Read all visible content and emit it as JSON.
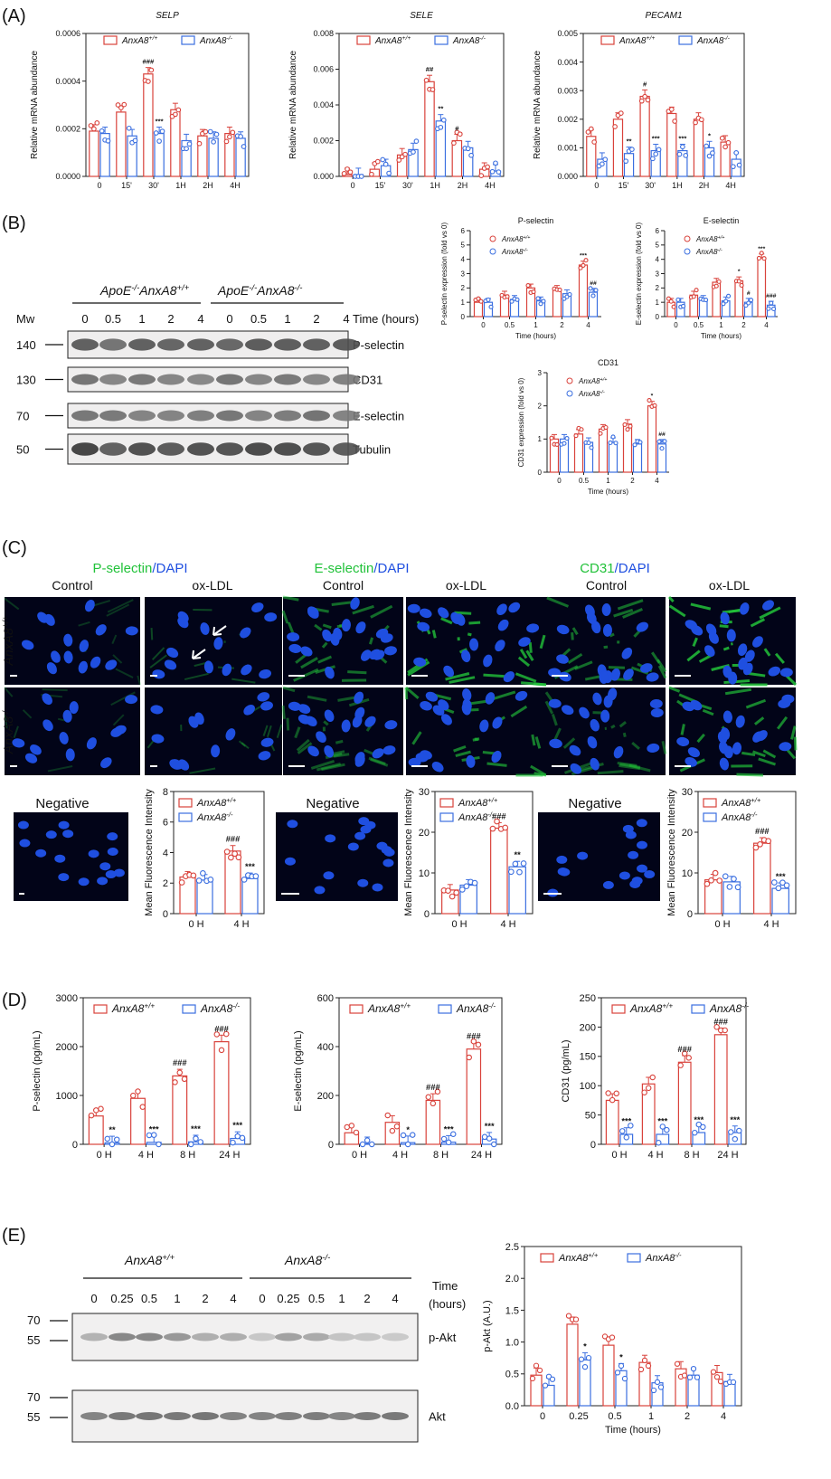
{
  "panels": {
    "a": "(A)",
    "b": "(B)",
    "c": "(C)",
    "d": "(D)",
    "e": "(E)"
  },
  "colors": {
    "wt": "#d9423b",
    "ko": "#3b6fe0",
    "dapi": "#1f4fe0",
    "green": "#22c23a"
  },
  "legend": {
    "wt": "AnxA8+/+",
    "ko": "AnxA8-/-"
  },
  "panel_a": {
    "x_categories": [
      "0",
      "15'",
      "30'",
      "1H",
      "2H",
      "4H"
    ],
    "charts": [
      {
        "title": "SELP",
        "ylabel": "Relative mRNA abundance",
        "ylim": [
          0,
          0.0006
        ],
        "yticks": [
          "0.0000",
          "0.0002",
          "0.0004",
          "0.0006"
        ],
        "wt": [
          0.00019,
          0.00027,
          0.00043,
          0.00028,
          0.00017,
          0.00018
        ],
        "ko": [
          0.00018,
          0.00017,
          0.00018,
          0.00015,
          0.00016,
          0.00016
        ],
        "wt_marks": [
          "",
          "",
          "###",
          "",
          "",
          ""
        ],
        "ko_marks": [
          "",
          "",
          "***",
          "",
          "",
          ""
        ]
      },
      {
        "title": "SELE",
        "ylabel": "Relative mRNA abundance",
        "ylim": [
          0,
          0.008
        ],
        "yticks": [
          "0.000",
          "0.002",
          "0.004",
          "0.006",
          "0.008"
        ],
        "wt": [
          0.0001,
          0.0004,
          0.0012,
          0.0053,
          0.002,
          0.0004
        ],
        "ko": [
          0.0001,
          0.0006,
          0.0015,
          0.0031,
          0.0016,
          0.0003
        ],
        "wt_marks": [
          "",
          "",
          "",
          "##",
          "#",
          ""
        ],
        "ko_marks": [
          "",
          "",
          "",
          "**",
          "",
          ""
        ]
      },
      {
        "title": "PECAM1",
        "ylabel": "Relative mRNA abundance",
        "ylim": [
          0,
          0.005
        ],
        "yticks": [
          "0.000",
          "0.001",
          "0.002",
          "0.003",
          "0.004",
          "0.005"
        ],
        "wt": [
          0.0014,
          0.002,
          0.0028,
          0.0022,
          0.002,
          0.0012
        ],
        "ko": [
          0.0006,
          0.0008,
          0.0009,
          0.0009,
          0.001,
          0.0006
        ],
        "wt_marks": [
          "",
          "",
          "#",
          "",
          "",
          ""
        ],
        "ko_marks": [
          "",
          "**",
          "***",
          "***",
          "*",
          ""
        ]
      }
    ]
  },
  "panel_b": {
    "group_wt": "ApoE-/-AnxA8+/+",
    "group_ko": "ApoE-/-AnxA8-/-",
    "lanes": [
      "0",
      "0.5",
      "1",
      "2",
      "4",
      "0",
      "0.5",
      "1",
      "2",
      "4"
    ],
    "time_label": "Time (hours)",
    "mw_label": "Mw",
    "blots": [
      {
        "mw": "140",
        "label": "P-selectin"
      },
      {
        "mw": "130",
        "label": "CD31"
      },
      {
        "mw": "70",
        "label": "E-selectin"
      },
      {
        "mw": "50",
        "label": "Tubulin"
      }
    ],
    "charts": [
      {
        "title": "P-selectin",
        "ylabel": "P-selectin expression (fold vs 0)",
        "xlabel": "Time (hours)",
        "x": [
          "0",
          "0.5",
          "1",
          "2",
          "4"
        ],
        "ylim": [
          0,
          6
        ],
        "yticks": [
          "0",
          "1",
          "2",
          "3",
          "4",
          "5",
          "6"
        ],
        "wt": [
          1,
          1.5,
          2,
          1.9,
          3.6
        ],
        "ko": [
          1,
          1.2,
          1.1,
          1.6,
          1.7
        ],
        "wt_marks": [
          "",
          "",
          "",
          "",
          "***"
        ],
        "ko_marks": [
          "",
          "",
          "",
          "",
          "##"
        ]
      },
      {
        "title": "E-selectin",
        "ylabel": "E-selectin expression (fold vs 0)",
        "xlabel": "Time (hours)",
        "x": [
          "0",
          "0.5",
          "1",
          "2",
          "4"
        ],
        "ylim": [
          0,
          6
        ],
        "yticks": [
          "0",
          "1",
          "2",
          "3",
          "4",
          "5",
          "6"
        ],
        "wt": [
          1,
          1.5,
          2.4,
          2.5,
          4.1
        ],
        "ko": [
          1,
          1.2,
          1.1,
          1.0,
          0.8
        ],
        "wt_marks": [
          "",
          "",
          "",
          "*",
          "***"
        ],
        "ko_marks": [
          "",
          "",
          "",
          "#",
          "###"
        ]
      },
      {
        "title": "CD31",
        "ylabel": "CD31 expression (fold vs 0)",
        "xlabel": "Time (hours)",
        "x": [
          "0",
          "0.5",
          "1",
          "2",
          "4"
        ],
        "ylim": [
          0,
          3
        ],
        "yticks": [
          "0",
          "1",
          "2",
          "3"
        ],
        "wt": [
          1,
          1.15,
          1.3,
          1.45,
          2.0
        ],
        "ko": [
          1,
          0.9,
          0.9,
          0.85,
          0.85
        ],
        "wt_marks": [
          "",
          "",
          "",
          "",
          "*"
        ],
        "ko_marks": [
          "",
          "",
          "",
          "",
          "##"
        ]
      }
    ]
  },
  "panel_c": {
    "groups": [
      {
        "stain": "P-selectin",
        "dapi": "/DAPI"
      },
      {
        "stain": "E-selectin",
        "dapi": "/DAPI"
      },
      {
        "stain": "CD31",
        "dapi": "/DAPI"
      }
    ],
    "control": "Control",
    "oxldl": "ox-LDL",
    "negative": "Negative",
    "row_wt": "AnxA8+/+",
    "row_ko": "AnxA8-/-",
    "charts": [
      {
        "ylabel": "Mean Fluorescence Intensity",
        "x": [
          "0 H",
          "4 H"
        ],
        "ylim": [
          0,
          8
        ],
        "yticks": [
          "0",
          "2",
          "4",
          "6",
          "8"
        ],
        "wt": [
          2.4,
          4.1
        ],
        "ko": [
          2.2,
          2.3
        ],
        "wt_marks": [
          "",
          "###"
        ],
        "ko_marks": [
          "",
          "***"
        ]
      },
      {
        "ylabel": "Mean Fluorescence Intensity",
        "x": [
          "0 H",
          "4 H"
        ],
        "ylim": [
          0,
          30
        ],
        "yticks": [
          "0",
          "10",
          "20",
          "30"
        ],
        "wt": [
          5.8,
          21
        ],
        "ko": [
          7,
          11.5
        ],
        "wt_marks": [
          "",
          "###"
        ],
        "ko_marks": [
          "",
          "**"
        ]
      },
      {
        "ylabel": "Mean Fluorescence Intensity",
        "x": [
          "0 H",
          "4 H"
        ],
        "ylim": [
          0,
          30
        ],
        "yticks": [
          "0",
          "10",
          "20",
          "30"
        ],
        "wt": [
          8.3,
          17.3
        ],
        "ko": [
          7.8,
          6.2
        ],
        "wt_marks": [
          "",
          "###"
        ],
        "ko_marks": [
          "",
          "***"
        ]
      }
    ]
  },
  "panel_d": {
    "x": [
      "0 H",
      "4 H",
      "8 H",
      "24 H"
    ],
    "charts": [
      {
        "ylabel": "P-selectin (pg/mL)",
        "ylim": [
          0,
          3000
        ],
        "yticks": [
          "0",
          "1000",
          "2000",
          "3000"
        ],
        "wt": [
          580,
          940,
          1400,
          2100
        ],
        "ko": [
          30,
          40,
          50,
          120
        ],
        "wt_marks": [
          "",
          "",
          "###",
          "###"
        ],
        "ko_marks": [
          "**",
          "***",
          "***",
          "***"
        ]
      },
      {
        "ylabel": "E-selectin (pg/mL)",
        "ylim": [
          0,
          700
        ],
        "yticks": [
          "0",
          "200",
          "400",
          "600"
        ],
        "wt": [
          55,
          105,
          210,
          455
        ],
        "ko": [
          3,
          8,
          10,
          25
        ],
        "wt_marks": [
          "",
          "",
          "###",
          "###"
        ],
        "ko_marks": [
          "",
          "*",
          "***",
          "***"
        ]
      },
      {
        "ylabel": "CD31 (pg/mL)",
        "ylim": [
          0,
          250
        ],
        "yticks": [
          "0",
          "50",
          "100",
          "150",
          "200",
          "250"
        ],
        "wt": [
          75,
          103,
          140,
          187
        ],
        "ko": [
          17,
          17,
          20,
          20
        ],
        "wt_marks": [
          "",
          "",
          "###",
          "###"
        ],
        "ko_marks": [
          "***",
          "***",
          "***",
          "***"
        ]
      }
    ]
  },
  "panel_e": {
    "group_wt": "AnxA8+/+",
    "group_ko": "AnxA8-/-",
    "lanes": [
      "0",
      "0.25",
      "0.5",
      "1",
      "2",
      "4",
      "0",
      "0.25",
      "0.5",
      "1",
      "2",
      "4"
    ],
    "time_label": [
      "Time",
      "(hours)"
    ],
    "blots": [
      {
        "mw": [
          "70",
          "55"
        ],
        "label": "p-Akt"
      },
      {
        "mw": [
          "70",
          "55"
        ],
        "label": "Akt"
      }
    ],
    "chart": {
      "ylabel": "p-Akt (A.U.)",
      "xlabel": "Time (hours)",
      "x": [
        "0",
        "0.25",
        "0.5",
        "1",
        "2",
        "4"
      ],
      "ylim": [
        0,
        2.5
      ],
      "yticks": [
        "0.0",
        "0.5",
        "1.0",
        "1.5",
        "2.0",
        "2.5"
      ],
      "wt": [
        0.48,
        1.28,
        0.95,
        0.68,
        0.58,
        0.52
      ],
      "ko": [
        0.32,
        0.72,
        0.55,
        0.36,
        0.48,
        0.38
      ],
      "wt_marks": [
        "",
        "",
        "",
        "",
        "",
        ""
      ],
      "ko_marks": [
        "",
        "*",
        "*",
        "",
        "",
        ""
      ]
    }
  }
}
